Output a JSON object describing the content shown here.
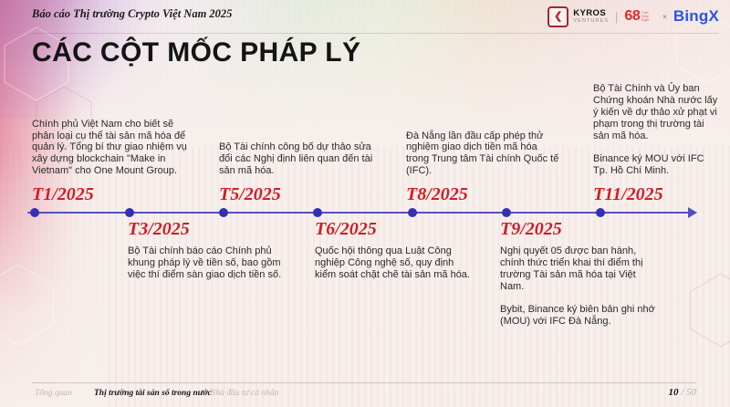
{
  "slide": {
    "breadcrumb": "Báo cáo Thị trường Crypto Việt Nam 2025",
    "title": "CÁC CỘT MỐC PHÁP LÝ"
  },
  "brand": {
    "kyros": {
      "chevron": "❮",
      "name": "KYROS",
      "sub": "VENTURES"
    },
    "separator": "|",
    "coin68": {
      "number": "68",
      "tagline": "Coin Sixty Eight"
    },
    "cross": "×",
    "bingx": "BingX"
  },
  "timeline": {
    "milestones": [
      {
        "date": "T1/2025",
        "side": "above",
        "text": "Chính phủ Việt Nam cho biết sẽ phân loại cụ thể tài sản mã hóa để quản lý. Tổng bí thư giao nhiệm vụ xây dựng blockchain \"Make in Vietnam\" cho One Mount Group."
      },
      {
        "date": "T3/2025",
        "side": "below",
        "text": "Bộ Tài chính báo cáo Chính phủ khung pháp lý về tiền số, bao gồm việc thí điểm sàn giao dịch tiền số."
      },
      {
        "date": "T5/2025",
        "side": "above",
        "text": "Bộ Tài chính công bố dự thảo sửa đổi các Nghị định liên quan đến tài sản mã hóa."
      },
      {
        "date": "T6/2025",
        "side": "below",
        "text": "Quốc hội thông qua Luật Công nghiệp Công nghệ số, quy định kiểm soát chặt chẽ tài sản mã hóa."
      },
      {
        "date": "T8/2025",
        "side": "above",
        "text": "Đà Nẵng lần đầu cấp phép thử nghiệm giao dịch tiền mã hóa trong Trung tâm Tài chính Quốc tế (IFC)."
      },
      {
        "date": "T9/2025",
        "side": "below",
        "text": "Nghị quyết 05 được ban hành, chính thức triển khai thí điểm thị trường Tài sản mã hóa tại Việt Nam.\n\nBybit, Binance ký biên bản ghi nhớ (MOU) với IFC Đà Nẵng."
      },
      {
        "date": "T11/2025",
        "side": "above",
        "text": "Bộ Tài Chính và Ủy ban Chứng khoán Nhà nước lấy ý kiến về dự thảo xử phạt vi phạm trong thị trường tài sản mã hóa.\n\nBinance ký MOU với IFC Tp. Hồ Chí Minh."
      }
    ]
  },
  "footer": {
    "items": [
      {
        "label": "Tổng quan"
      },
      {
        "label": "Thị trường tài sản số trong nước"
      },
      {
        "label": "Nhà đầu tư cá nhân"
      }
    ],
    "page": "10",
    "page_total": "/ 50"
  },
  "colors": {
    "accent_red": "#d11d26",
    "timeline_blue": "#3430b4",
    "bingx_blue": "#2b53e8",
    "kyros_red": "#b5242c",
    "background": "#f7efec"
  }
}
